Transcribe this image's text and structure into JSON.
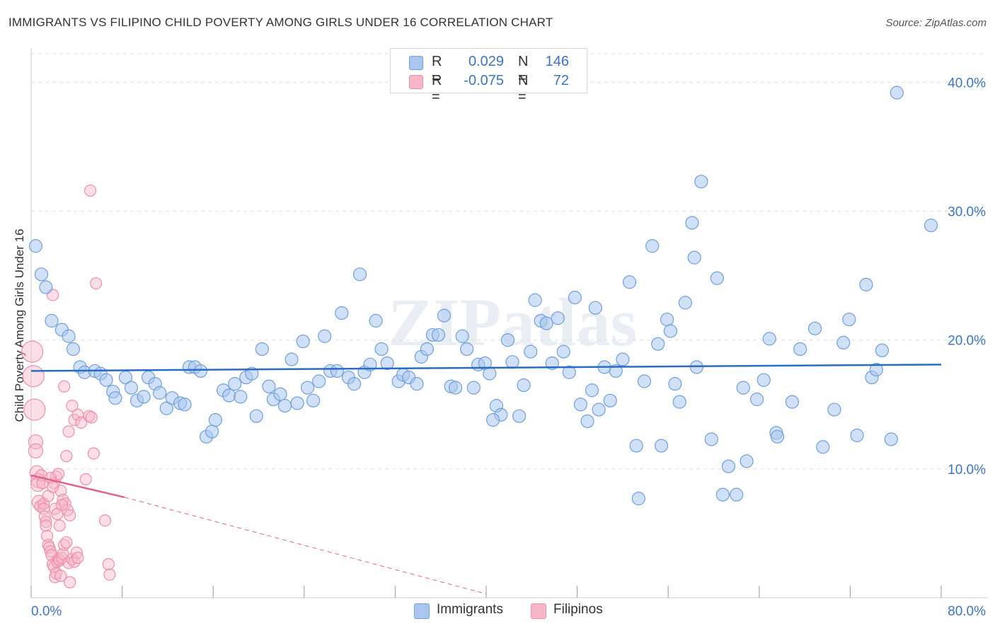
{
  "title": "IMMIGRANTS VS FILIPINO CHILD POVERTY AMONG GIRLS UNDER 16 CORRELATION CHART",
  "source": "Source: ZipAtlas.com",
  "watermark": "ZIPatlas",
  "legend": {
    "rows": [
      {
        "r_label": "R =",
        "r_value": "0.029",
        "n_label": "N =",
        "n_value": "146",
        "color": "#a9c6ef"
      },
      {
        "r_label": "R =",
        "r_value": "-0.075",
        "n_label": "N =",
        "n_value": "72",
        "color": "#f7b6c8"
      }
    ]
  },
  "bottom_legend": [
    {
      "label": "Immigrants",
      "color": "#a9c6ef"
    },
    {
      "label": "Filipinos",
      "color": "#f7b6c8"
    }
  ],
  "colors": {
    "immigrants_fill": "#a9c6ef",
    "immigrants_stroke": "#6f9fdc",
    "immigrants_line": "#2a6cc4",
    "filipinos_fill": "#f7b6c8",
    "filipinos_stroke": "#ee8fa9",
    "filipinos_line": "#e0628a",
    "tick_text": "#3a75c4",
    "grid": "#dddddd"
  },
  "chart_data": {
    "type": "scatter",
    "title": "IMMIGRANTS VS FILIPINO CHILD POVERTY AMONG GIRLS UNDER 16 CORRELATION CHART",
    "xlabel": "",
    "ylabel": "Child Poverty Among Girls Under 16",
    "xlim": [
      0,
      80
    ],
    "ylim": [
      0,
      42
    ],
    "x_tick_labels": [
      "0.0%",
      "80.0%"
    ],
    "y_ticks": [
      10,
      20,
      30,
      40
    ],
    "y_tick_labels": [
      "10.0%",
      "20.0%",
      "30.0%",
      "40.0%"
    ],
    "series": [
      {
        "name": "Immigrants",
        "R": 0.029,
        "N": 146,
        "trend": {
          "x0": 0,
          "y0": 17.6,
          "x1": 80,
          "y1": 18.1
        },
        "points": [
          [
            0.4,
            27.3
          ],
          [
            0.9,
            25.1
          ],
          [
            1.3,
            24.1
          ],
          [
            1.8,
            21.5
          ],
          [
            2.7,
            20.8
          ],
          [
            3.3,
            20.3
          ],
          [
            3.7,
            19.3
          ],
          [
            4.3,
            17.9
          ],
          [
            4.7,
            17.5
          ],
          [
            5.6,
            17.6
          ],
          [
            6.1,
            17.4
          ],
          [
            6.6,
            16.9
          ],
          [
            7.2,
            16.0
          ],
          [
            7.4,
            15.5
          ],
          [
            8.3,
            17.1
          ],
          [
            8.8,
            16.3
          ],
          [
            9.3,
            15.3
          ],
          [
            9.9,
            15.6
          ],
          [
            10.3,
            17.1
          ],
          [
            10.9,
            16.6
          ],
          [
            11.3,
            15.9
          ],
          [
            11.9,
            14.7
          ],
          [
            12.4,
            15.5
          ],
          [
            13.1,
            15.1
          ],
          [
            13.5,
            15.0
          ],
          [
            13.9,
            17.9
          ],
          [
            14.4,
            17.9
          ],
          [
            14.9,
            17.6
          ],
          [
            15.4,
            12.5
          ],
          [
            15.9,
            12.9
          ],
          [
            16.2,
            13.8
          ],
          [
            16.9,
            16.1
          ],
          [
            17.4,
            15.7
          ],
          [
            17.9,
            16.6
          ],
          [
            18.4,
            15.6
          ],
          [
            18.9,
            17.1
          ],
          [
            19.4,
            17.4
          ],
          [
            19.8,
            14.1
          ],
          [
            20.3,
            19.3
          ],
          [
            20.9,
            16.4
          ],
          [
            21.3,
            15.4
          ],
          [
            21.9,
            15.8
          ],
          [
            22.3,
            14.9
          ],
          [
            22.9,
            18.5
          ],
          [
            23.4,
            15.1
          ],
          [
            23.9,
            19.9
          ],
          [
            24.3,
            16.3
          ],
          [
            24.8,
            15.3
          ],
          [
            25.3,
            16.8
          ],
          [
            25.8,
            20.3
          ],
          [
            26.3,
            17.6
          ],
          [
            26.9,
            17.6
          ],
          [
            27.3,
            22.1
          ],
          [
            27.9,
            17.1
          ],
          [
            28.4,
            16.6
          ],
          [
            28.9,
            25.1
          ],
          [
            29.3,
            17.5
          ],
          [
            29.8,
            18.1
          ],
          [
            30.3,
            21.5
          ],
          [
            30.8,
            19.3
          ],
          [
            31.3,
            18.2
          ],
          [
            32.3,
            16.8
          ],
          [
            32.7,
            17.3
          ],
          [
            33.2,
            17.1
          ],
          [
            33.9,
            16.6
          ],
          [
            34.3,
            18.7
          ],
          [
            34.8,
            19.3
          ],
          [
            35.3,
            20.4
          ],
          [
            35.8,
            20.4
          ],
          [
            36.3,
            21.9
          ],
          [
            36.9,
            16.4
          ],
          [
            37.3,
            16.3
          ],
          [
            37.9,
            20.3
          ],
          [
            38.3,
            19.3
          ],
          [
            38.9,
            16.3
          ],
          [
            39.3,
            18.1
          ],
          [
            39.9,
            18.2
          ],
          [
            40.3,
            17.4
          ],
          [
            40.9,
            14.9
          ],
          [
            41.3,
            14.2
          ],
          [
            41.9,
            20.0
          ],
          [
            42.3,
            18.3
          ],
          [
            42.9,
            14.1
          ],
          [
            43.3,
            16.5
          ],
          [
            43.9,
            19.1
          ],
          [
            44.3,
            23.1
          ],
          [
            44.8,
            21.5
          ],
          [
            45.3,
            21.3
          ],
          [
            45.8,
            18.2
          ],
          [
            46.3,
            21.7
          ],
          [
            46.8,
            19.1
          ],
          [
            47.3,
            17.5
          ],
          [
            47.8,
            23.3
          ],
          [
            48.3,
            15.0
          ],
          [
            48.9,
            13.7
          ],
          [
            49.3,
            16.1
          ],
          [
            49.9,
            14.6
          ],
          [
            50.4,
            17.9
          ],
          [
            50.9,
            15.3
          ],
          [
            51.4,
            17.6
          ],
          [
            52.0,
            18.5
          ],
          [
            52.6,
            24.5
          ],
          [
            53.2,
            11.8
          ],
          [
            53.4,
            7.7
          ],
          [
            53.9,
            16.8
          ],
          [
            54.6,
            27.3
          ],
          [
            55.1,
            19.7
          ],
          [
            55.4,
            11.8
          ],
          [
            55.9,
            21.6
          ],
          [
            56.6,
            16.6
          ],
          [
            57.0,
            15.2
          ],
          [
            57.5,
            22.9
          ],
          [
            58.1,
            29.1
          ],
          [
            58.5,
            17.9
          ],
          [
            58.9,
            32.3
          ],
          [
            59.8,
            12.3
          ],
          [
            60.3,
            24.8
          ],
          [
            60.8,
            8.0
          ],
          [
            61.3,
            10.2
          ],
          [
            62.0,
            8.0
          ],
          [
            62.6,
            16.3
          ],
          [
            62.9,
            10.6
          ],
          [
            63.8,
            15.4
          ],
          [
            64.4,
            16.9
          ],
          [
            64.9,
            20.1
          ],
          [
            65.5,
            12.8
          ],
          [
            65.6,
            12.5
          ],
          [
            66.9,
            15.2
          ],
          [
            67.6,
            19.3
          ],
          [
            68.9,
            20.9
          ],
          [
            69.6,
            11.7
          ],
          [
            70.6,
            14.6
          ],
          [
            71.4,
            19.8
          ],
          [
            71.9,
            21.6
          ],
          [
            72.6,
            12.6
          ],
          [
            73.4,
            24.3
          ],
          [
            73.9,
            17.1
          ],
          [
            74.3,
            17.7
          ],
          [
            74.8,
            19.2
          ],
          [
            75.6,
            12.3
          ],
          [
            76.1,
            39.2
          ],
          [
            79.1,
            28.9
          ],
          [
            58.3,
            26.4
          ],
          [
            56.2,
            20.7
          ],
          [
            49.6,
            22.5
          ],
          [
            40.6,
            13.8
          ]
        ]
      },
      {
        "name": "Filipinos",
        "R": -0.075,
        "N": 72,
        "trend_solid": {
          "x0": 0,
          "y0": 9.5,
          "x1": 8.2,
          "y1": 7.8
        },
        "trend_dashed": {
          "x0": 8.2,
          "y0": 7.8,
          "x1": 40,
          "y1": 0.3
        },
        "points": [
          [
            0.1,
            19.1
          ],
          [
            0.2,
            17.2
          ],
          [
            0.3,
            14.6
          ],
          [
            0.4,
            12.1
          ],
          [
            0.4,
            11.4
          ],
          [
            0.5,
            9.7
          ],
          [
            0.6,
            9.1
          ],
          [
            0.6,
            8.8
          ],
          [
            0.7,
            7.4
          ],
          [
            0.8,
            7.1
          ],
          [
            0.9,
            9.5
          ],
          [
            1.0,
            8.9
          ],
          [
            1.1,
            7.3
          ],
          [
            1.1,
            6.9
          ],
          [
            1.2,
            6.3
          ],
          [
            1.3,
            5.9
          ],
          [
            1.3,
            5.6
          ],
          [
            1.4,
            4.8
          ],
          [
            1.5,
            4.1
          ],
          [
            1.6,
            3.9
          ],
          [
            1.7,
            3.6
          ],
          [
            1.8,
            3.3
          ],
          [
            1.9,
            2.6
          ],
          [
            2.0,
            2.4
          ],
          [
            2.1,
            1.6
          ],
          [
            2.2,
            1.9
          ],
          [
            2.3,
            2.8
          ],
          [
            2.4,
            3.0
          ],
          [
            2.5,
            2.9
          ],
          [
            2.6,
            1.7
          ],
          [
            2.7,
            3.1
          ],
          [
            2.8,
            3.4
          ],
          [
            2.9,
            4.1
          ],
          [
            3.1,
            4.3
          ],
          [
            3.3,
            2.7
          ],
          [
            3.4,
            1.2
          ],
          [
            3.6,
            3.0
          ],
          [
            3.8,
            2.8
          ],
          [
            4.0,
            3.5
          ],
          [
            4.1,
            3.1
          ],
          [
            2.0,
            8.9
          ],
          [
            2.2,
            9.4
          ],
          [
            2.4,
            9.6
          ],
          [
            2.6,
            8.3
          ],
          [
            2.8,
            7.6
          ],
          [
            3.0,
            7.3
          ],
          [
            3.2,
            6.8
          ],
          [
            3.4,
            6.4
          ],
          [
            1.5,
            7.9
          ],
          [
            1.7,
            9.3
          ],
          [
            1.9,
            8.6
          ],
          [
            2.1,
            6.9
          ],
          [
            2.3,
            6.5
          ],
          [
            2.5,
            5.6
          ],
          [
            2.7,
            7.2
          ],
          [
            2.9,
            16.4
          ],
          [
            3.1,
            11.0
          ],
          [
            3.3,
            12.9
          ],
          [
            3.6,
            14.9
          ],
          [
            3.8,
            13.8
          ],
          [
            4.1,
            14.2
          ],
          [
            4.4,
            13.6
          ],
          [
            4.8,
            9.2
          ],
          [
            5.1,
            14.1
          ],
          [
            5.3,
            14.0
          ],
          [
            5.5,
            11.2
          ],
          [
            5.2,
            31.6
          ],
          [
            5.7,
            24.4
          ],
          [
            1.9,
            23.5
          ],
          [
            6.5,
            6.0
          ],
          [
            6.8,
            2.6
          ],
          [
            6.9,
            1.8
          ]
        ]
      }
    ]
  }
}
